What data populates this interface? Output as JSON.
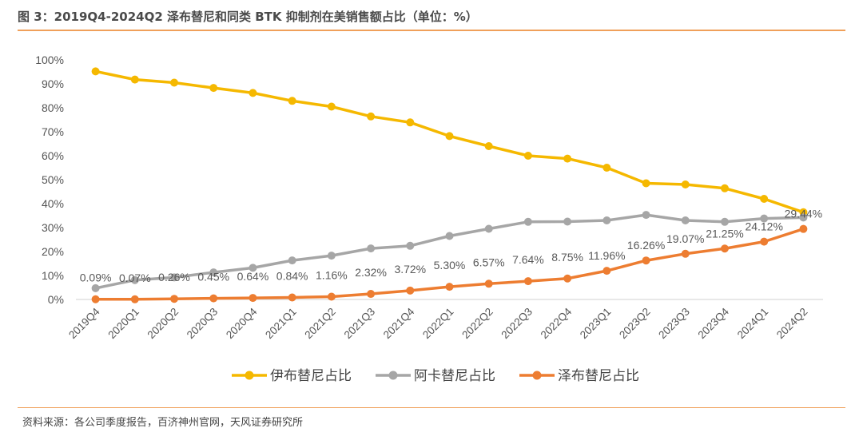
{
  "header": {
    "title": "图 3：2019Q4-2024Q2 泽布替尼和同类 BTK 抑制剂在美销售额占比（单位：%）"
  },
  "footer": {
    "source": "资料来源：各公司季度报告，百济神州官网，天风证券研究所"
  },
  "chart_data": {
    "type": "line",
    "title": "图 3：2019Q4-2024Q2 泽布替尼和同类 BTK 抑制剂在美销售额占比（单位：%）",
    "x": [
      "2019Q4",
      "2020Q1",
      "2020Q2",
      "2020Q3",
      "2020Q4",
      "2021Q1",
      "2021Q2",
      "2021Q3",
      "2021Q4",
      "2022Q1",
      "2022Q2",
      "2022Q3",
      "2022Q4",
      "2023Q1",
      "2023Q2",
      "2023Q3",
      "2023Q4",
      "2024Q1",
      "2024Q2"
    ],
    "ylim": [
      0,
      100
    ],
    "yticks": [
      "0%",
      "10%",
      "20%",
      "30%",
      "40%",
      "50%",
      "60%",
      "70%",
      "80%",
      "90%",
      "100%"
    ],
    "ytick_values": [
      0,
      10,
      20,
      30,
      40,
      50,
      60,
      70,
      80,
      90,
      100
    ],
    "grid": false,
    "legend_position": "bottom",
    "series": [
      {
        "name": "伊布替尼占比",
        "color": "#f5b800",
        "values": [
          95.2,
          91.8,
          90.5,
          88.3,
          86.2,
          82.9,
          80.5,
          76.4,
          73.9,
          68.2,
          64.0,
          60.0,
          58.8,
          55.0,
          48.5,
          48.0,
          46.4,
          42.0,
          36.4
        ]
      },
      {
        "name": "阿卡替尼占比",
        "color": "#a6a6a6",
        "values": [
          4.7,
          8.1,
          9.2,
          11.3,
          13.2,
          16.3,
          18.3,
          21.3,
          22.4,
          26.5,
          29.5,
          32.4,
          32.5,
          33.0,
          35.3,
          33.0,
          32.4,
          33.8,
          34.2
        ]
      },
      {
        "name": "泽布替尼占比",
        "color": "#ed7d31",
        "values": [
          0.09,
          0.07,
          0.26,
          0.45,
          0.64,
          0.84,
          1.16,
          2.32,
          3.72,
          5.3,
          6.57,
          7.64,
          8.75,
          11.96,
          16.26,
          19.07,
          21.25,
          24.12,
          29.44
        ],
        "data_labels": [
          "0.09%",
          "0.07%",
          "0.26%",
          "0.45%",
          "0.64%",
          "0.84%",
          "1.16%",
          "2.32%",
          "3.72%",
          "5.30%",
          "6.57%",
          "7.64%",
          "8.75%",
          "11.96%",
          "16.26%",
          "19.07%",
          "21.25%",
          "24.12%",
          "29.44%"
        ]
      }
    ]
  }
}
